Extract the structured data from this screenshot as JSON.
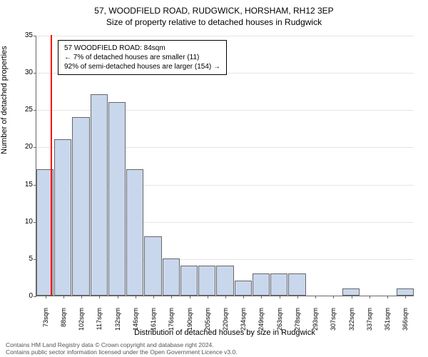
{
  "title": "57, WOODFIELD ROAD, RUDGWICK, HORSHAM, RH12 3EP",
  "subtitle": "Size of property relative to detached houses in Rudgwick",
  "chart": {
    "type": "histogram",
    "ylabel": "Number of detached properties",
    "xlabel": "Distribution of detached houses by size in Rudgwick",
    "ylim": [
      0,
      35
    ],
    "ytick_step": 5,
    "yticks": [
      0,
      5,
      10,
      15,
      20,
      25,
      30,
      35
    ],
    "bar_color": "#c9d7ed",
    "bar_border": "#666666",
    "grid_color": "#e5e5e5",
    "background": "#ffffff",
    "marker_x": 84,
    "marker_color": "#ff0000",
    "xtick_labels": [
      "73sqm",
      "88sqm",
      "102sqm",
      "117sqm",
      "132sqm",
      "146sqm",
      "161sqm",
      "176sqm",
      "190sqm",
      "205sqm",
      "220sqm",
      "234sqm",
      "249sqm",
      "263sqm",
      "278sqm",
      "293sqm",
      "307sqm",
      "322sqm",
      "337sqm",
      "351sqm",
      "366sqm"
    ],
    "x_range": [
      73,
      366
    ],
    "bars": [
      {
        "x": 73,
        "h": 17
      },
      {
        "x": 88,
        "h": 21
      },
      {
        "x": 102,
        "h": 24
      },
      {
        "x": 117,
        "h": 27
      },
      {
        "x": 132,
        "h": 26
      },
      {
        "x": 146,
        "h": 17
      },
      {
        "x": 161,
        "h": 8
      },
      {
        "x": 176,
        "h": 5
      },
      {
        "x": 190,
        "h": 4
      },
      {
        "x": 205,
        "h": 4
      },
      {
        "x": 220,
        "h": 4
      },
      {
        "x": 234,
        "h": 2
      },
      {
        "x": 249,
        "h": 3
      },
      {
        "x": 263,
        "h": 3
      },
      {
        "x": 278,
        "h": 3
      },
      {
        "x": 293,
        "h": 0
      },
      {
        "x": 307,
        "h": 0
      },
      {
        "x": 322,
        "h": 1
      },
      {
        "x": 337,
        "h": 0
      },
      {
        "x": 351,
        "h": 0
      },
      {
        "x": 366,
        "h": 1
      }
    ]
  },
  "info_box": {
    "line1": "57 WOODFIELD ROAD: 84sqm",
    "line2": "← 7% of detached houses are smaller (11)",
    "line3": "92% of semi-detached houses are larger (154) →"
  },
  "footer": {
    "line1": "Contains HM Land Registry data © Crown copyright and database right 2024.",
    "line2": "Contains public sector information licensed under the Open Government Licence v3.0."
  }
}
